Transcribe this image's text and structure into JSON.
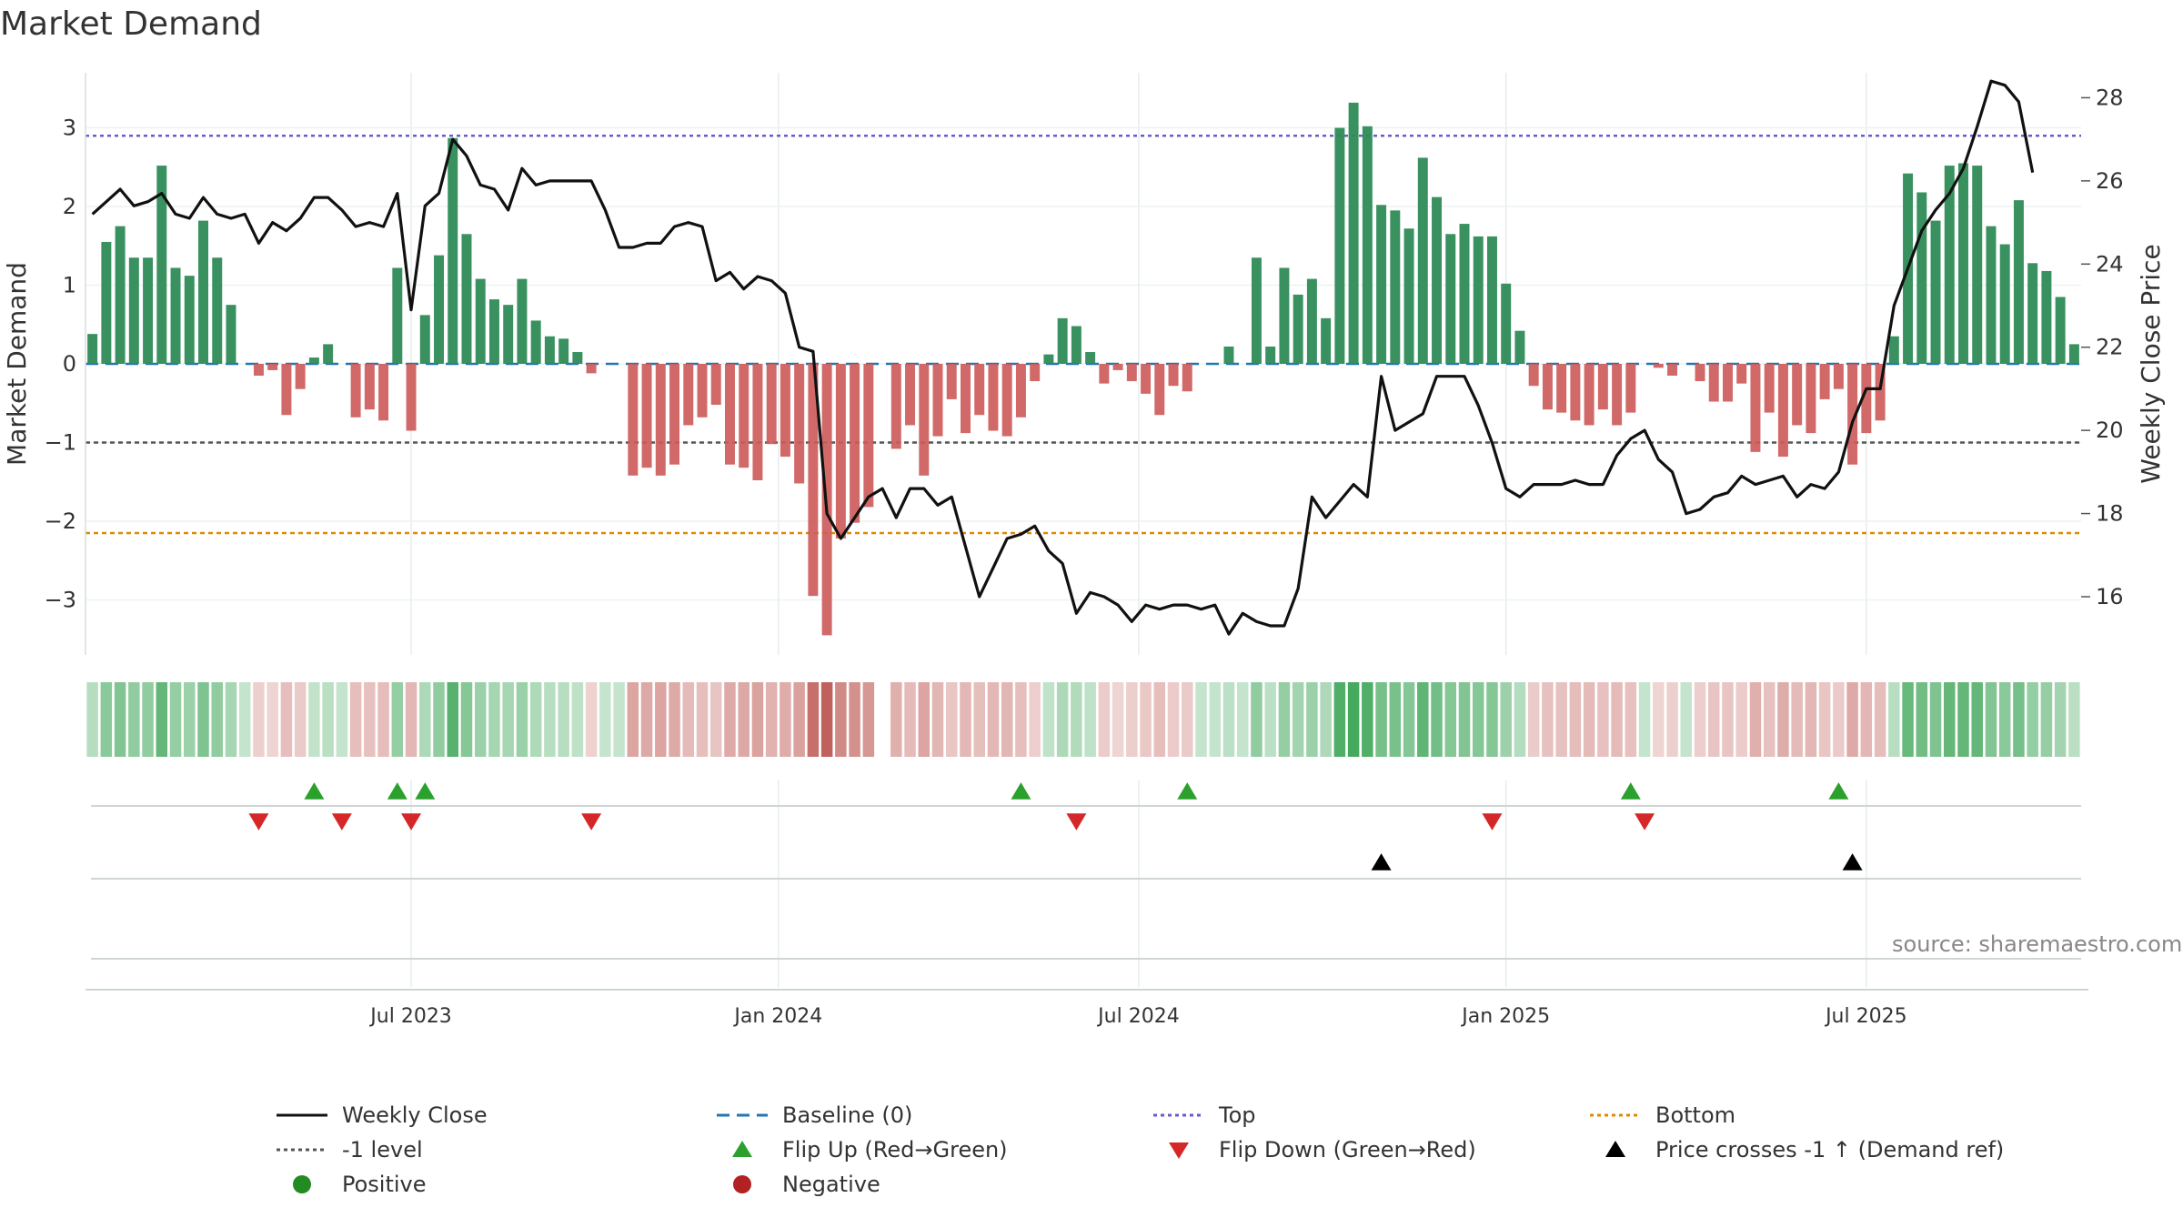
{
  "title": "Market Demand",
  "source": "source: sharemaestro.com",
  "colors": {
    "positive_bar": "#2e8b57",
    "negative_bar": "#cd5c5c",
    "close_line": "#111111",
    "baseline": "#1f77b4",
    "top_line": "#6a5acd",
    "minus1_line": "#555555",
    "bottom_line": "#e08a00",
    "flip_up": "#2ca02c",
    "flip_down": "#d62728",
    "cross": "#000000",
    "positive_dot": "#228b22",
    "negative_dot": "#b22222"
  },
  "chart_data": {
    "type": "bar",
    "title": "Market Demand",
    "ylabel_left": "Market Demand",
    "ylabel_right": "Weekly Close Price",
    "ylim_left": [
      -3.7,
      3.7
    ],
    "ylim_right": [
      14.6,
      28.6
    ],
    "left_ticks": [
      3,
      2,
      1,
      0,
      -1,
      -2,
      -3
    ],
    "left_tick_labels": [
      "3",
      "2",
      "1",
      "0",
      "−1",
      "−2",
      "−3"
    ],
    "right_ticks": [
      28,
      26,
      24,
      22,
      20,
      18,
      16
    ],
    "right_tick_labels": [
      "28",
      "26",
      "24",
      "22",
      "20",
      "18",
      "16"
    ],
    "x_ticks": [
      {
        "label": "Jul 2023",
        "index": 23
      },
      {
        "label": "Jan 2024",
        "index": 49.5
      },
      {
        "label": "Jul 2024",
        "index": 75.5
      },
      {
        "label": "Jan 2025",
        "index": 102
      },
      {
        "label": "Jul 2025",
        "index": 128
      }
    ],
    "levels": {
      "baseline": 0,
      "top": 2.9,
      "minus1": -1,
      "bottom": -2.15
    },
    "demand": [
      0.38,
      1.55,
      1.75,
      1.35,
      1.35,
      2.52,
      1.22,
      1.12,
      1.82,
      1.35,
      0.75,
      0,
      -0.15,
      -0.08,
      -0.65,
      -0.32,
      0.08,
      0.25,
      0,
      -0.68,
      -0.58,
      -0.72,
      1.22,
      -0.85,
      0.62,
      1.38,
      2.87,
      1.65,
      1.08,
      0.82,
      0.75,
      1.08,
      0.55,
      0.35,
      0.32,
      0.15,
      -0.12,
      0,
      0,
      -1.42,
      -1.32,
      -1.42,
      -1.28,
      -0.78,
      -0.68,
      -0.52,
      -1.28,
      -1.32,
      -1.48,
      -1.02,
      -1.18,
      -1.52,
      -2.95,
      -3.45,
      -2.22,
      -2.02,
      -1.82,
      0,
      -1.08,
      -0.78,
      -1.42,
      -0.92,
      -0.45,
      -0.88,
      -0.65,
      -0.85,
      -0.92,
      -0.68,
      -0.22,
      0.12,
      0.58,
      0.48,
      0.15,
      -0.25,
      -0.08,
      -0.22,
      -0.38,
      -0.65,
      -0.28,
      -0.35,
      0,
      0,
      0.22,
      0,
      1.35,
      0.22,
      1.22,
      0.88,
      1.08,
      0.58,
      3.0,
      3.32,
      3.02,
      2.02,
      1.95,
      1.72,
      2.62,
      2.12,
      1.65,
      1.78,
      1.62,
      1.62,
      1.02,
      0.42,
      -0.28,
      -0.58,
      -0.62,
      -0.72,
      -0.78,
      -0.58,
      -0.78,
      -0.62,
      0,
      -0.05,
      -0.15,
      0,
      -0.22,
      -0.48,
      -0.48,
      -0.25,
      -1.12,
      -0.62,
      -1.18,
      -0.78,
      -0.88,
      -0.45,
      -0.32,
      -1.28,
      -0.88,
      -0.72,
      0.35,
      2.42,
      2.18,
      1.82,
      2.52,
      2.55,
      2.52,
      1.75,
      1.52,
      2.08,
      1.28,
      1.18,
      0.85,
      0.25
    ],
    "close": [
      25.2,
      25.5,
      25.8,
      25.4,
      25.5,
      25.7,
      25.2,
      25.1,
      25.6,
      25.2,
      25.1,
      25.2,
      24.5,
      25.0,
      24.8,
      25.1,
      25.6,
      25.6,
      25.3,
      24.9,
      25.0,
      24.9,
      25.7,
      22.9,
      25.4,
      25.7,
      27.0,
      26.6,
      25.9,
      25.8,
      25.3,
      26.3,
      25.9,
      26.0,
      26.0,
      26.0,
      26.0,
      25.3,
      24.4,
      24.4,
      24.5,
      24.5,
      24.9,
      25.0,
      24.9,
      23.6,
      23.8,
      23.4,
      23.7,
      23.6,
      23.3,
      22.0,
      21.9,
      18.0,
      17.4,
      17.9,
      18.4,
      18.6,
      17.9,
      18.6,
      18.6,
      18.2,
      18.4,
      17.2,
      16.0,
      16.7,
      17.4,
      17.5,
      17.7,
      17.1,
      16.8,
      15.6,
      16.1,
      16.0,
      15.8,
      15.4,
      15.8,
      15.7,
      15.8,
      15.8,
      15.7,
      15.8,
      15.1,
      15.6,
      15.4,
      15.3,
      15.3,
      16.2,
      18.4,
      17.9,
      18.3,
      18.7,
      18.4,
      21.3,
      20.0,
      20.2,
      20.4,
      21.3,
      21.3,
      21.3,
      20.6,
      19.7,
      18.6,
      18.4,
      18.7,
      18.7,
      18.7,
      18.8,
      18.7,
      18.7,
      19.4,
      19.8,
      20.0,
      19.3,
      19.0,
      18.0,
      18.1,
      18.4,
      18.5,
      18.9,
      18.7,
      18.8,
      18.9,
      18.4,
      18.7,
      18.6,
      19.0,
      20.2,
      21.0,
      21.0,
      23.0,
      23.9,
      24.8,
      25.3,
      25.7,
      26.3,
      27.3,
      28.4,
      28.3,
      27.9,
      26.2
    ],
    "flip_up_index": [
      16,
      22,
      24,
      67,
      79,
      111,
      126
    ],
    "flip_down_index": [
      12,
      18,
      23,
      36,
      71,
      101,
      112
    ],
    "cross_up_index": [
      93,
      127
    ],
    "legend": [
      {
        "label": "Weekly Close",
        "kind": "line-solid"
      },
      {
        "label": "Baseline (0)",
        "kind": "line-dash-blue"
      },
      {
        "label": "Top",
        "kind": "line-dot-purple"
      },
      {
        "label": "Bottom",
        "kind": "line-dot-orange"
      },
      {
        "label": "-1 level",
        "kind": "line-dot-gray"
      },
      {
        "label": "Flip Up (Red→Green)",
        "kind": "tri-up-green"
      },
      {
        "label": "Flip Down (Green→Red)",
        "kind": "tri-down-red"
      },
      {
        "label": "Price crosses -1 ↑ (Demand ref)",
        "kind": "tri-up-black"
      },
      {
        "label": "Positive",
        "kind": "dot-green"
      },
      {
        "label": "Negative",
        "kind": "dot-red"
      }
    ]
  }
}
